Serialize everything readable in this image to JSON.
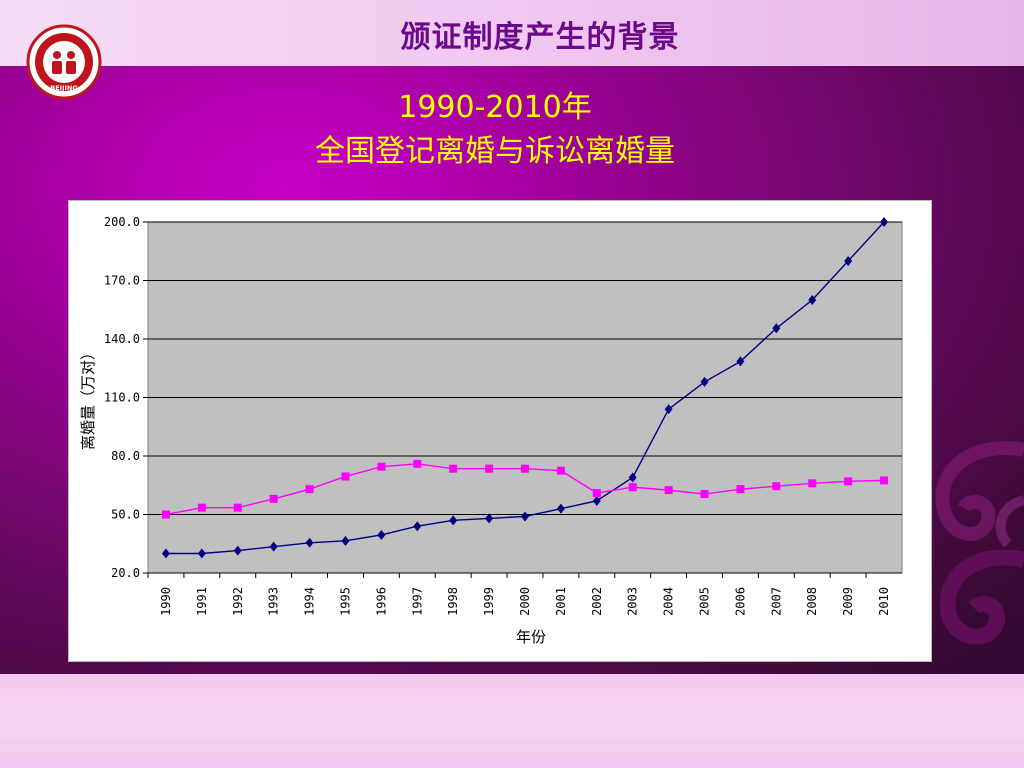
{
  "slide": {
    "title": "颁证制度产生的背景",
    "subtitle_line1": "1990-2010年",
    "subtitle_line2": "全国登记离婚与诉讼离婚量",
    "logo_text": "BEIJING"
  },
  "colors": {
    "series_registered": "#000080",
    "series_litigation": "#ff00ff",
    "plot_bg": "#c0c0c0",
    "title": "#6a0a8a",
    "subtitle": "#ffff00"
  },
  "chart_data": {
    "type": "line",
    "title": "",
    "xlabel": "年份",
    "ylabel": "离婚量（万对）",
    "ylim": [
      20.0,
      200.0
    ],
    "yticks": [
      "20.0",
      "50.0",
      "80.0",
      "110.0",
      "140.0",
      "170.0",
      "200.0"
    ],
    "grid": true,
    "categories": [
      "1990",
      "1991",
      "1992",
      "1993",
      "1994",
      "1995",
      "1996",
      "1997",
      "1998",
      "1999",
      "2000",
      "2001",
      "2002",
      "2003",
      "2004",
      "2005",
      "2006",
      "2007",
      "2008",
      "2009",
      "2010"
    ],
    "series": [
      {
        "marker": "diamond",
        "color": "#000080",
        "values": [
          30.0,
          30.0,
          31.5,
          33.5,
          35.5,
          36.5,
          39.5,
          44.0,
          47.0,
          48.0,
          49.0,
          53.0,
          57.0,
          69.0,
          104.0,
          118.0,
          128.5,
          145.5,
          160.0,
          180.0,
          200.0
        ]
      },
      {
        "marker": "square",
        "color": "#ff00ff",
        "values": [
          50.0,
          53.5,
          53.5,
          58.0,
          63.0,
          69.5,
          74.5,
          76.0,
          73.5,
          73.5,
          73.5,
          72.5,
          61.0,
          64.0,
          62.5,
          60.5,
          63.0,
          64.5,
          66.0,
          67.0,
          67.5
        ]
      }
    ]
  }
}
